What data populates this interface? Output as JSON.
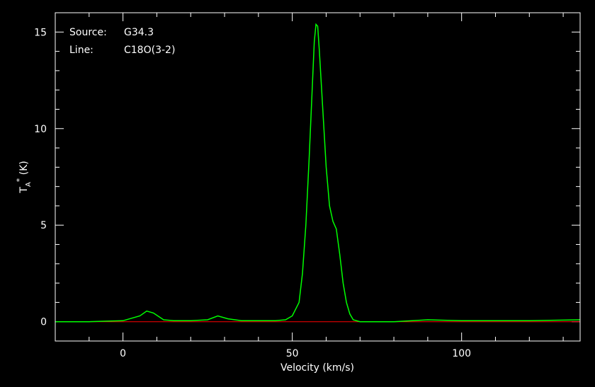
{
  "chart_data": {
    "type": "line",
    "annotations": {
      "source_label": "Source:",
      "source_value": "G34.3",
      "line_label": "Line:",
      "line_value": "C18O(3-2)"
    },
    "xlabel": "Velocity (km/s)",
    "ylabel_main": "T",
    "ylabel_sub": "A",
    "ylabel_sup": "*",
    "ylabel_unit": "(K)",
    "xlim": [
      -20,
      135
    ],
    "ylim": [
      -1,
      16
    ],
    "x_ticks": [
      0,
      50,
      100
    ],
    "x_tick_labels": [
      "0",
      "50",
      "100"
    ],
    "y_ticks": [
      0,
      5,
      10,
      15
    ],
    "y_tick_labels": [
      "0",
      "5",
      "10",
      "15"
    ],
    "grid": false,
    "colors": {
      "background": "#000000",
      "axes": "#ffffff",
      "spectrum": "#00ff00",
      "baseline": "#ff0000"
    },
    "baseline_y": 0,
    "series": [
      {
        "x": [
          -20,
          -10,
          0,
          5,
          7,
          9,
          12,
          15,
          20,
          25,
          28,
          31,
          35,
          40,
          45,
          48,
          50,
          52,
          53,
          54,
          55,
          56,
          56.5,
          57,
          57.5,
          58,
          59,
          60,
          61,
          62,
          63,
          64,
          65,
          66,
          67,
          68,
          70,
          80,
          90,
          100,
          110,
          120,
          135
        ],
        "y": [
          0,
          0,
          0.05,
          0.3,
          0.55,
          0.45,
          0.1,
          0.05,
          0.05,
          0.1,
          0.3,
          0.15,
          0.05,
          0.05,
          0.05,
          0.1,
          0.3,
          1.0,
          2.5,
          5.0,
          8.5,
          12.5,
          14.5,
          15.4,
          15.3,
          14.0,
          11.0,
          8.0,
          6.0,
          5.2,
          4.8,
          3.5,
          2.0,
          1.0,
          0.4,
          0.1,
          0.0,
          0.0,
          0.1,
          0.05,
          0.05,
          0.05,
          0.1
        ]
      }
    ]
  }
}
